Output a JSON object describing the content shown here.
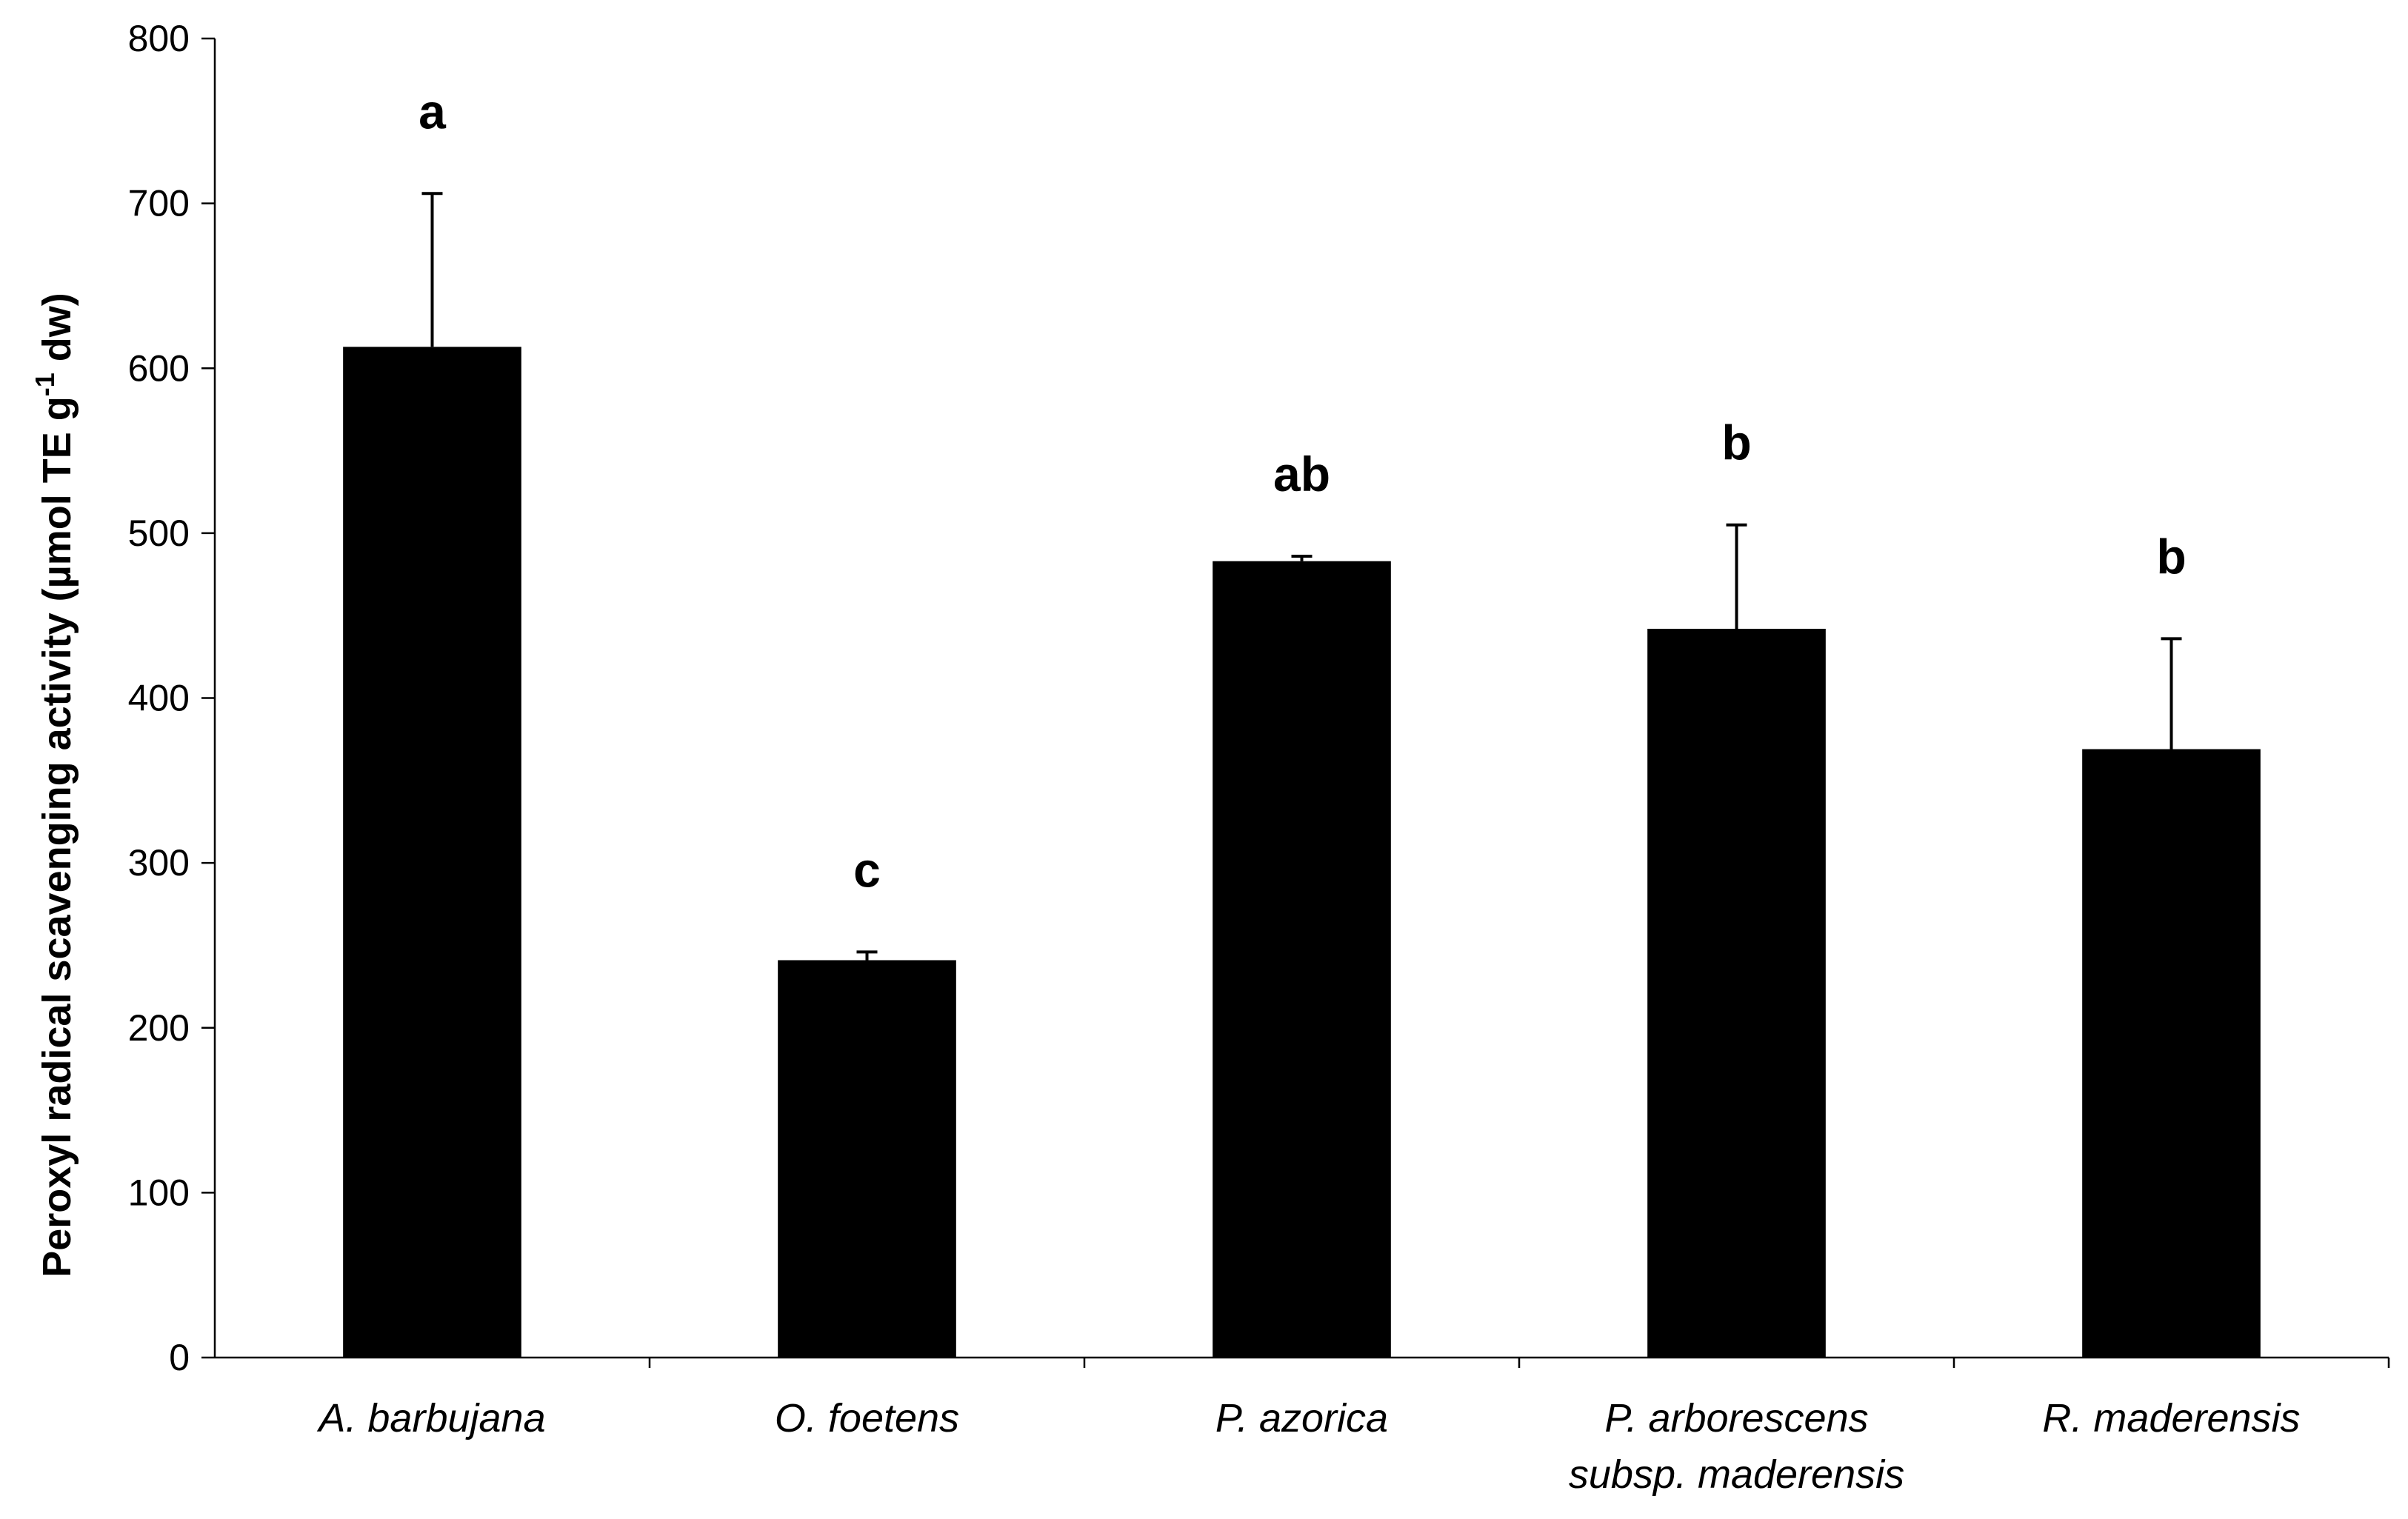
{
  "chart_data": {
    "type": "bar",
    "categories": [
      [
        "A. barbujana"
      ],
      [
        "O. foetens"
      ],
      [
        "P. azorica"
      ],
      [
        "P. arborescens",
        "subsp. maderensis"
      ],
      [
        "R. maderensis"
      ]
    ],
    "values": [
      613,
      241,
      483,
      442,
      369
    ],
    "error_plus": [
      93,
      5,
      3,
      63,
      67
    ],
    "significance_letters": [
      "a",
      "c",
      "ab",
      "b",
      "b"
    ],
    "ylabel_main": "Peroxyl radical scavenging activity (µmol TE g",
    "ylabel_sup": "-1",
    "ylabel_tail": " dw)",
    "ylim": [
      0,
      800
    ],
    "yticks": [
      0,
      100,
      200,
      300,
      400,
      500,
      600,
      700,
      800
    ],
    "bar_color": "#000000",
    "grid": false
  }
}
